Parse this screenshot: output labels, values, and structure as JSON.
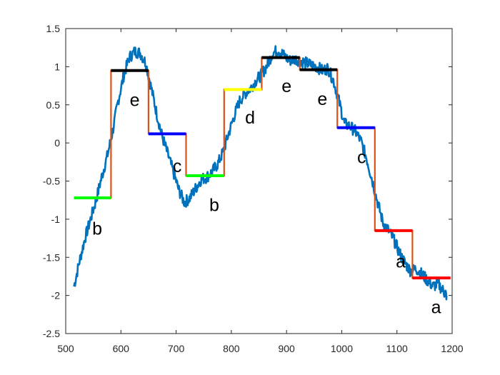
{
  "chart_data": {
    "type": "line",
    "title": "",
    "xlabel": "",
    "ylabel": "",
    "xlim": [
      500,
      1200
    ],
    "ylim": [
      -2.5,
      1.5
    ],
    "x_ticks": [
      "500",
      "600",
      "700",
      "800",
      "900",
      "1000",
      "1100",
      "1200"
    ],
    "y_ticks": [
      "1.5",
      "1",
      "0.5",
      "0",
      "-0.5",
      "-1",
      "-1.5",
      "-2",
      "-2.5"
    ],
    "grid": false,
    "legend": "none",
    "series": [
      {
        "kind": "noisy-signal",
        "color": "#0072BD",
        "points": [
          [
            515,
            -1.88
          ],
          [
            525,
            -1.55
          ],
          [
            535,
            -1.25
          ],
          [
            545,
            -1.0
          ],
          [
            555,
            -0.75
          ],
          [
            565,
            -0.45
          ],
          [
            575,
            -0.18
          ],
          [
            585,
            0.15
          ],
          [
            595,
            0.55
          ],
          [
            605,
            0.88
          ],
          [
            615,
            1.12
          ],
          [
            625,
            1.2
          ],
          [
            635,
            1.18
          ],
          [
            645,
            1.05
          ],
          [
            655,
            0.72
          ],
          [
            665,
            0.38
          ],
          [
            675,
            0.08
          ],
          [
            685,
            -0.15
          ],
          [
            695,
            -0.38
          ],
          [
            705,
            -0.62
          ],
          [
            715,
            -0.78
          ],
          [
            725,
            -0.72
          ],
          [
            735,
            -0.6
          ],
          [
            745,
            -0.48
          ],
          [
            755,
            -0.45
          ],
          [
            765,
            -0.38
          ],
          [
            775,
            -0.28
          ],
          [
            785,
            -0.12
          ],
          [
            795,
            0.12
          ],
          [
            805,
            0.35
          ],
          [
            815,
            0.55
          ],
          [
            825,
            0.65
          ],
          [
            835,
            0.72
          ],
          [
            845,
            0.82
          ],
          [
            855,
            0.9
          ],
          [
            865,
            1.02
          ],
          [
            875,
            1.18
          ],
          [
            885,
            1.22
          ],
          [
            895,
            1.15
          ],
          [
            905,
            1.08
          ],
          [
            915,
            1.1
          ],
          [
            925,
            1.08
          ],
          [
            935,
            1.05
          ],
          [
            945,
            1.02
          ],
          [
            955,
            1.0
          ],
          [
            965,
            0.95
          ],
          [
            975,
            0.98
          ],
          [
            985,
            0.82
          ],
          [
            995,
            0.55
          ],
          [
            1005,
            0.25
          ],
          [
            1015,
            0.22
          ],
          [
            1025,
            0.15
          ],
          [
            1035,
            0.02
          ],
          [
            1045,
            -0.2
          ],
          [
            1055,
            -0.48
          ],
          [
            1065,
            -0.78
          ],
          [
            1075,
            -1.05
          ],
          [
            1085,
            -1.15
          ],
          [
            1095,
            -1.28
          ],
          [
            1105,
            -1.45
          ],
          [
            1115,
            -1.58
          ],
          [
            1125,
            -1.68
          ],
          [
            1135,
            -1.65
          ],
          [
            1145,
            -1.72
          ],
          [
            1155,
            -1.8
          ],
          [
            1165,
            -1.88
          ],
          [
            1175,
            -1.85
          ],
          [
            1185,
            -1.95
          ],
          [
            1190,
            -2.0
          ]
        ]
      },
      {
        "kind": "step-path",
        "color": "#D95319",
        "points": [
          [
            515,
            -0.72
          ],
          [
            582,
            -0.72
          ],
          [
            582,
            0.95
          ],
          [
            650,
            0.95
          ],
          [
            650,
            0.12
          ],
          [
            718,
            0.12
          ],
          [
            718,
            -0.43
          ],
          [
            787,
            -0.43
          ],
          [
            787,
            0.7
          ],
          [
            855,
            0.7
          ],
          [
            855,
            1.12
          ],
          [
            924,
            1.12
          ],
          [
            924,
            0.96
          ],
          [
            992,
            0.96
          ],
          [
            992,
            0.2
          ],
          [
            1060,
            0.2
          ],
          [
            1060,
            -1.15
          ],
          [
            1128,
            -1.15
          ],
          [
            1128,
            -1.77
          ],
          [
            1197,
            -1.77
          ]
        ]
      }
    ],
    "segments": [
      {
        "x0": 515,
        "x1": 582,
        "y": -0.72,
        "label": "b",
        "color": "#00FF00",
        "label_x": 557,
        "label_y": -1.12
      },
      {
        "x0": 582,
        "x1": 650,
        "y": 0.95,
        "label": "e",
        "color": "#000000",
        "label_x": 625,
        "label_y": 0.57
      },
      {
        "x0": 650,
        "x1": 718,
        "y": 0.12,
        "label": "c",
        "color": "#0000FF",
        "label_x": 702,
        "label_y": -0.3
      },
      {
        "x0": 718,
        "x1": 787,
        "y": -0.43,
        "label": "b",
        "color": "#00FF00",
        "label_x": 769,
        "label_y": -0.81
      },
      {
        "x0": 787,
        "x1": 855,
        "y": 0.7,
        "label": "d",
        "color": "#FFFF00",
        "label_x": 834,
        "label_y": 0.34
      },
      {
        "x0": 855,
        "x1": 924,
        "y": 1.12,
        "label": "e",
        "color": "#000000",
        "label_x": 900,
        "label_y": 0.75
      },
      {
        "x0": 924,
        "x1": 992,
        "y": 0.96,
        "label": "e",
        "color": "#000000",
        "label_x": 965,
        "label_y": 0.58
      },
      {
        "x0": 992,
        "x1": 1060,
        "y": 0.2,
        "label": "c",
        "color": "#0000FF",
        "label_x": 1036,
        "label_y": -0.18
      },
      {
        "x0": 1060,
        "x1": 1128,
        "y": -1.15,
        "label": "a",
        "color": "#FF0000",
        "label_x": 1107,
        "label_y": -1.55
      },
      {
        "x0": 1128,
        "x1": 1197,
        "y": -1.77,
        "label": "a",
        "color": "#FF0000",
        "label_x": 1171,
        "label_y": -2.15
      }
    ]
  }
}
